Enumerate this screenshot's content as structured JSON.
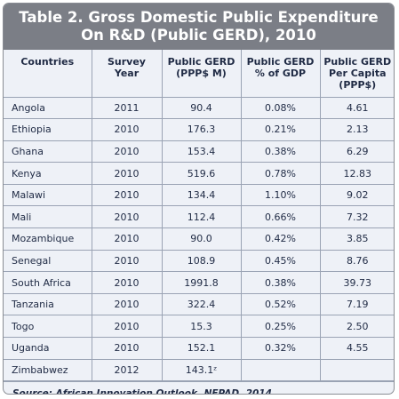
{
  "title": {
    "line1": "Table 2. Gross Domestic Public Expenditure",
    "line2": "On R&D (Public GERD), 2010"
  },
  "headers": [
    {
      "l1": "Countries",
      "l2": "",
      "l3": ""
    },
    {
      "l1": "Survey",
      "l2": "Year",
      "l3": ""
    },
    {
      "l1": "Public GERD",
      "l2": "(PPP$ M)",
      "l3": ""
    },
    {
      "l1": "Public GERD",
      "l2": "% of GDP",
      "l3": ""
    },
    {
      "l1": "Public GERD",
      "l2": "Per Capita",
      "l3": "(PPP$)"
    }
  ],
  "rows": [
    {
      "country": "Angola",
      "year": "2011",
      "gerd": "90.4",
      "pct": "0.08%",
      "per_capita": "4.61"
    },
    {
      "country": "Ethiopia",
      "year": "2010",
      "gerd": "176.3",
      "pct": "0.21%",
      "per_capita": "2.13"
    },
    {
      "country": "Ghana",
      "year": "2010",
      "gerd": "153.4",
      "pct": "0.38%",
      "per_capita": "6.29"
    },
    {
      "country": "Kenya",
      "year": "2010",
      "gerd": "519.6",
      "pct": "0.78%",
      "per_capita": "12.83"
    },
    {
      "country": "Malawi",
      "year": "2010",
      "gerd": "134.4",
      "pct": "1.10%",
      "per_capita": "9.02"
    },
    {
      "country": "Mali",
      "year": "2010",
      "gerd": "112.4",
      "pct": "0.66%",
      "per_capita": "7.32"
    },
    {
      "country": "Mozambique",
      "year": "2010",
      "gerd": "90.0",
      "pct": "0.42%",
      "per_capita": "3.85"
    },
    {
      "country": "Senegal",
      "year": "2010",
      "gerd": "108.9",
      "pct": "0.45%",
      "per_capita": "8.76"
    },
    {
      "country": "South Africa",
      "year": "2010",
      "gerd": "1991.8",
      "pct": "0.38%",
      "per_capita": "39.73"
    },
    {
      "country": "Tanzania",
      "year": "2010",
      "gerd": "322.4",
      "pct": "0.52%",
      "per_capita": "7.19"
    },
    {
      "country": "Togo",
      "year": "2010",
      "gerd": "15.3",
      "pct": "0.25%",
      "per_capita": "2.50"
    },
    {
      "country": "Uganda",
      "year": "2010",
      "gerd": "152.1",
      "pct": "0.32%",
      "per_capita": "4.55"
    },
    {
      "country": "Zimbabwez",
      "year": "2012",
      "gerd": "143.1ᶻ",
      "pct": "",
      "per_capita": ""
    }
  ],
  "source": "Source: African Innovation Outlook, NEPAD, 2014",
  "colors": {
    "title_bg": "#7b7e86",
    "table_bg": "#eef1f7",
    "grid": "#9aa3b4",
    "text": "#1f2a44"
  }
}
